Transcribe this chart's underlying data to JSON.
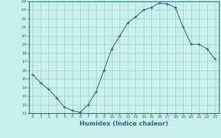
{
  "x": [
    0,
    1,
    2,
    3,
    4,
    5,
    6,
    7,
    8,
    9,
    10,
    11,
    12,
    13,
    14,
    15,
    16,
    17,
    18,
    19,
    20,
    21,
    22,
    23
  ],
  "y": [
    15.5,
    14.5,
    13.8,
    12.8,
    11.7,
    11.3,
    11.1,
    12.0,
    13.5,
    16.0,
    18.5,
    20.0,
    21.5,
    22.2,
    23.0,
    23.3,
    23.8,
    23.7,
    23.3,
    21.0,
    19.0,
    19.0,
    18.5,
    17.3
  ],
  "ylim": [
    11,
    24
  ],
  "xlim": [
    -0.5,
    23.5
  ],
  "yticks": [
    11,
    12,
    13,
    14,
    15,
    16,
    17,
    18,
    19,
    20,
    21,
    22,
    23,
    24
  ],
  "xticks": [
    0,
    1,
    2,
    3,
    4,
    5,
    6,
    7,
    8,
    9,
    10,
    11,
    12,
    13,
    14,
    15,
    16,
    17,
    18,
    19,
    20,
    21,
    22,
    23
  ],
  "xlabel": "Humidex (Indice chaleur)",
  "line_color": "#2d6e6e",
  "marker": "+",
  "bg_color": "#c8eeee",
  "grid_color": "#9ecece"
}
